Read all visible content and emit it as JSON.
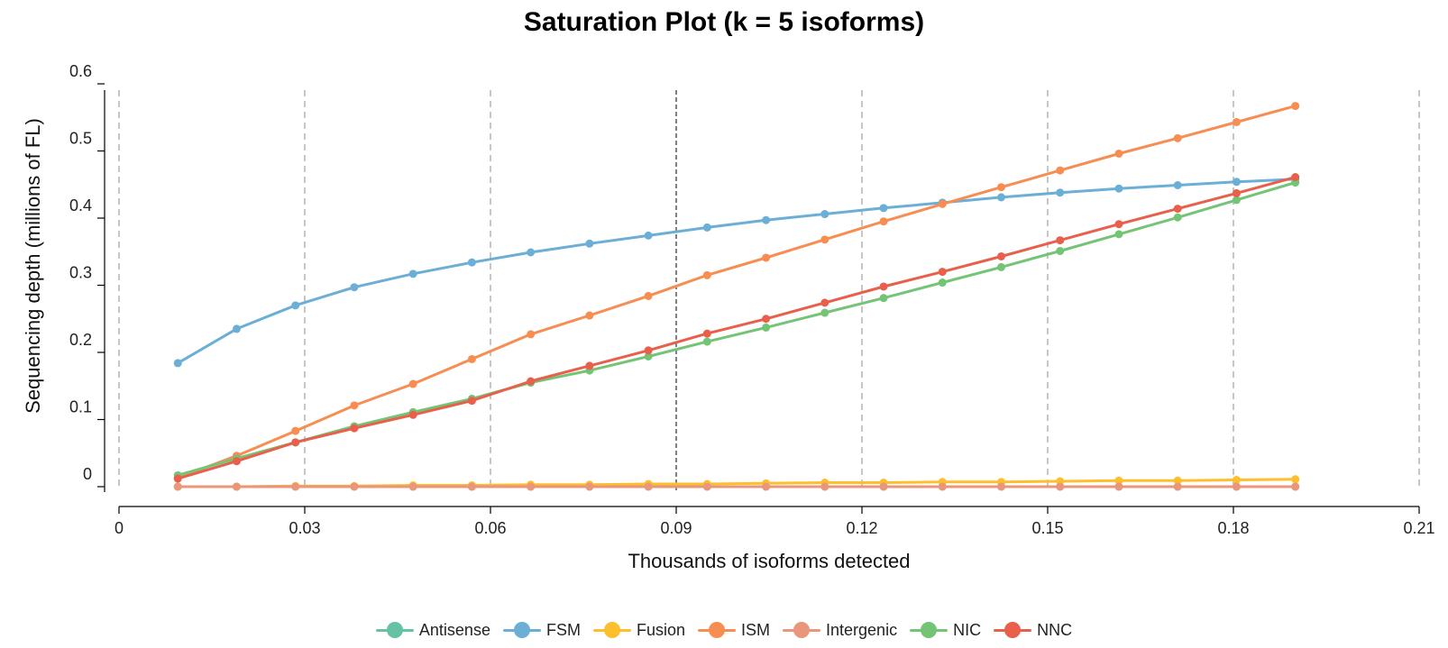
{
  "chart_data": {
    "type": "line",
    "title": "Saturation Plot (k = 5 isoforms)",
    "xlabel": "Thousands of isoforms detected",
    "ylabel": "Sequencing depth (millions of FL)",
    "xlim": [
      0,
      0.21
    ],
    "ylim": [
      0,
      0.6
    ],
    "xticks": [
      0,
      0.03,
      0.06,
      0.09,
      0.12,
      0.15,
      0.18,
      0.21
    ],
    "xtick_labels": [
      "0",
      "0.03",
      "0.06",
      "0.09",
      "0.12",
      "0.15",
      "0.18",
      "0.21"
    ],
    "yticks": [
      0,
      0.1,
      0.2,
      0.3,
      0.4,
      0.5,
      0.6
    ],
    "ytick_labels": [
      "0",
      "0.1",
      "0.2",
      "0.3",
      "0.4",
      "0.5",
      "0.6"
    ],
    "reference_line_x": 0.09,
    "grid": "vertical dashed",
    "legend_position": "bottom",
    "x": [
      0.0095,
      0.019,
      0.0285,
      0.038,
      0.0475,
      0.057,
      0.0665,
      0.076,
      0.0855,
      0.095,
      0.1045,
      0.114,
      0.1235,
      0.133,
      0.1425,
      0.152,
      0.1615,
      0.171,
      0.1805,
      0.19
    ],
    "series": [
      {
        "name": "Antisense",
        "color": "#66c2a5",
        "values": [
          0.0,
          0.0,
          0.0,
          0.0,
          0.0,
          0.0,
          0.0,
          0.0,
          0.0,
          0.0,
          0.0,
          0.0,
          0.0,
          0.0,
          0.0,
          0.0,
          0.0,
          0.0,
          0.0,
          0.0
        ]
      },
      {
        "name": "FSM",
        "color": "#6baed6",
        "values": [
          0.184,
          0.235,
          0.27,
          0.297,
          0.317,
          0.334,
          0.349,
          0.362,
          0.374,
          0.386,
          0.397,
          0.406,
          0.415,
          0.423,
          0.431,
          0.438,
          0.444,
          0.449,
          0.454,
          0.458
        ]
      },
      {
        "name": "Fusion",
        "color": "#fdbf2d",
        "values": [
          0.0,
          0.0,
          0.001,
          0.001,
          0.002,
          0.002,
          0.003,
          0.003,
          0.004,
          0.004,
          0.005,
          0.006,
          0.006,
          0.007,
          0.007,
          0.008,
          0.009,
          0.009,
          0.01,
          0.011
        ]
      },
      {
        "name": "ISM",
        "color": "#f88d52",
        "values": [
          0.013,
          0.046,
          0.083,
          0.121,
          0.153,
          0.19,
          0.227,
          0.255,
          0.284,
          0.315,
          0.341,
          0.368,
          0.395,
          0.421,
          0.446,
          0.471,
          0.496,
          0.519,
          0.543,
          0.567
        ]
      },
      {
        "name": "Intergenic",
        "color": "#e9967a",
        "values": [
          0.0,
          0.0,
          0.0,
          0.0,
          0.0,
          0.0,
          0.0,
          0.0,
          0.0,
          0.0,
          0.0,
          0.0,
          0.0,
          0.0,
          0.0,
          0.0,
          0.0,
          0.0,
          0.0,
          0.0
        ]
      },
      {
        "name": "NIC",
        "color": "#74c476",
        "values": [
          0.017,
          0.042,
          0.066,
          0.09,
          0.111,
          0.131,
          0.155,
          0.173,
          0.194,
          0.216,
          0.237,
          0.259,
          0.281,
          0.304,
          0.327,
          0.351,
          0.376,
          0.401,
          0.427,
          0.453
        ]
      },
      {
        "name": "NNC",
        "color": "#e8604c",
        "values": [
          0.012,
          0.038,
          0.066,
          0.087,
          0.107,
          0.128,
          0.157,
          0.18,
          0.203,
          0.228,
          0.25,
          0.274,
          0.298,
          0.32,
          0.343,
          0.367,
          0.391,
          0.414,
          0.437,
          0.461
        ]
      }
    ]
  }
}
